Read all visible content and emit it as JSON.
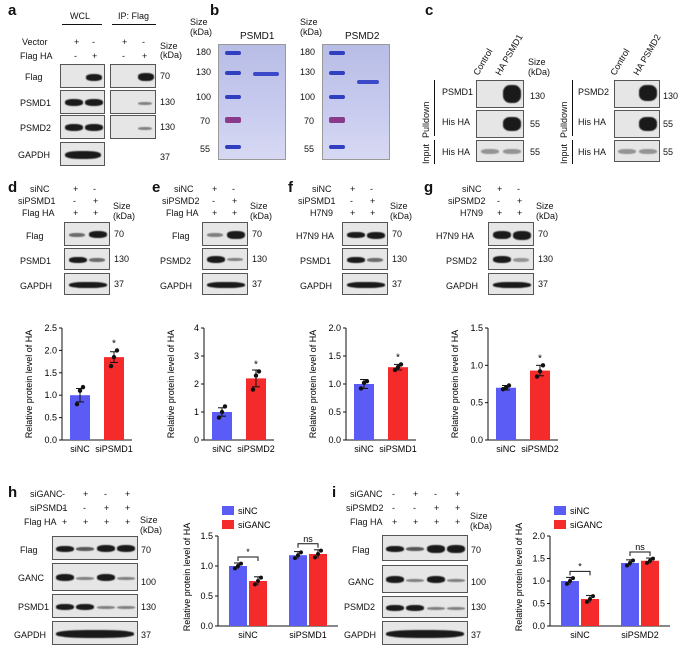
{
  "panels": {
    "a": "a",
    "b": "b",
    "c": "c",
    "d": "d",
    "e": "e",
    "f": "f",
    "g": "g",
    "h": "h",
    "i": "i"
  },
  "panel_a": {
    "wcl": "WCL",
    "ip": "IP: Flag",
    "rows": [
      "Vector",
      "Flag HA"
    ],
    "signs_vector": [
      "+",
      "-",
      "+",
      "-"
    ],
    "signs_flag": [
      "-",
      "+",
      "-",
      "+"
    ],
    "blots": [
      "Flag",
      "PSMD1",
      "PSMD2",
      "GAPDH"
    ],
    "size_header": "Size (kDa)",
    "sizes": [
      "70",
      "130",
      "130",
      "37"
    ]
  },
  "panel_b": {
    "size_header": "Size (kDa)",
    "gel1_title": "PSMD1",
    "gel2_title": "PSMD2",
    "markers": [
      "180",
      "130",
      "100",
      "70",
      "55"
    ]
  },
  "panel_c": {
    "cols1": [
      "Control",
      "HA PSMD1"
    ],
    "cols2": [
      "Control",
      "HA PSMD2"
    ],
    "size_header": "Size (kDa)",
    "pulldown": "Pulldown",
    "input": "Input",
    "rows1": [
      "PSMD1",
      "His HA",
      "His HA"
    ],
    "rows2": [
      "PSMD2",
      "His HA",
      "His HA"
    ],
    "sizes": [
      "130",
      "55",
      "55"
    ]
  },
  "panel_d": {
    "row1": "siNC",
    "row2": "siPSMD1",
    "row3": "Flag HA",
    "blots": [
      "Flag",
      "PSMD1",
      "GAPDH"
    ],
    "sizes": [
      "70",
      "130",
      "37"
    ],
    "signs1": [
      "+",
      "-"
    ],
    "signs2": [
      "-",
      "+"
    ],
    "signs3": [
      "+",
      "+"
    ]
  },
  "panel_e": {
    "row1": "siNC",
    "row2": "siPSMD2",
    "row3": "Flag HA",
    "blots": [
      "Flag",
      "PSMD2",
      "GAPDH"
    ],
    "sizes": [
      "70",
      "130",
      "37"
    ],
    "signs1": [
      "+",
      "-"
    ],
    "signs2": [
      "-",
      "+"
    ],
    "signs3": [
      "+",
      "+"
    ]
  },
  "panel_f": {
    "row1": "siNC",
    "row2": "siPSMD1",
    "row3": "H7N9",
    "blots": [
      "H7N9 HA",
      "PSMD1",
      "GAPDH"
    ],
    "sizes": [
      "70",
      "130",
      "37"
    ],
    "signs1": [
      "+",
      "-"
    ],
    "signs2": [
      "-",
      "+"
    ],
    "signs3": [
      "+",
      "+"
    ]
  },
  "panel_g": {
    "row1": "siNC",
    "row2": "siPSMD2",
    "row3": "H7N9",
    "blots": [
      "H7N9 HA",
      "PSMD2",
      "GAPDH"
    ],
    "sizes": [
      "70",
      "130",
      "37"
    ],
    "signs1": [
      "+",
      "-"
    ],
    "signs2": [
      "-",
      "+"
    ],
    "signs3": [
      "+",
      "+"
    ]
  },
  "panel_h": {
    "rows": [
      "siGANC",
      "siPSMD1",
      "Flag HA"
    ],
    "signs": [
      [
        "-",
        "+",
        "-",
        "+"
      ],
      [
        "-",
        "-",
        "+",
        "+"
      ],
      [
        "+",
        "+",
        "+",
        "+"
      ]
    ],
    "blots": [
      "Flag",
      "GANC",
      "PSMD1",
      "GAPDH"
    ],
    "sizes": [
      "70",
      "100",
      "130",
      "37"
    ],
    "size_header": "Size (kDa)"
  },
  "panel_i": {
    "rows": [
      "siGANC",
      "siPSMD2",
      "Flag HA"
    ],
    "signs": [
      [
        "-",
        "+",
        "-",
        "+"
      ],
      [
        "-",
        "-",
        "+",
        "+"
      ],
      [
        "+",
        "+",
        "+",
        "+"
      ]
    ],
    "blots": [
      "Flag",
      "GANC",
      "PSMD2",
      "GAPDH"
    ],
    "sizes": [
      "70",
      "100",
      "130",
      "37"
    ],
    "size_header": "Size (kDa)"
  },
  "common": {
    "size": "Size",
    "kda": "(kDa)",
    "ylabel": "Relative protein level of HA",
    "sig": "*",
    "ns": "ns"
  },
  "chart_data": [
    {
      "id": "d",
      "type": "bar",
      "categories": [
        "siNC",
        "siPSMD1"
      ],
      "values": [
        1.0,
        1.85
      ],
      "errors": [
        0.15,
        0.12
      ],
      "points": [
        [
          0.8,
          1.1,
          1.18
        ],
        [
          1.65,
          1.85,
          2.0
        ]
      ],
      "ylim": [
        0,
        2.5
      ],
      "yticks": [
        "0.0",
        "0.5",
        "1.0",
        "1.5",
        "2.0",
        "2.5"
      ],
      "colors": [
        "#5b5bf5",
        "#f52a2a"
      ],
      "ylabel": "Relative protein level of HA"
    },
    {
      "id": "e",
      "type": "bar",
      "categories": [
        "siNC",
        "siPSMD2"
      ],
      "values": [
        1.0,
        2.2
      ],
      "errors": [
        0.15,
        0.3
      ],
      "points": [
        [
          0.8,
          1.0,
          1.2
        ],
        [
          1.8,
          2.3,
          2.45
        ]
      ],
      "ylim": [
        0,
        4
      ],
      "yticks": [
        "0",
        "1",
        "2",
        "3",
        "4"
      ],
      "colors": [
        "#5b5bf5",
        "#f52a2a"
      ],
      "ylabel": "Relative protein level of HA"
    },
    {
      "id": "f",
      "type": "bar",
      "categories": [
        "siNC",
        "siPSMD1"
      ],
      "values": [
        1.0,
        1.3
      ],
      "errors": [
        0.08,
        0.05
      ],
      "points": [
        [
          0.92,
          1.02,
          1.05
        ],
        [
          1.25,
          1.3,
          1.35
        ]
      ],
      "ylim": [
        0,
        2.0
      ],
      "yticks": [
        "0.0",
        "0.5",
        "1.0",
        "1.5",
        "2.0"
      ],
      "colors": [
        "#5b5bf5",
        "#f52a2a"
      ],
      "ylabel": "Relative protein level of HA"
    },
    {
      "id": "g",
      "type": "bar",
      "categories": [
        "siNC",
        "siPSMD2"
      ],
      "values": [
        0.7,
        0.93
      ],
      "errors": [
        0.03,
        0.07
      ],
      "points": [
        [
          0.68,
          0.7,
          0.73
        ],
        [
          0.85,
          0.92,
          1.0
        ]
      ],
      "ylim": [
        0,
        1.5
      ],
      "yticks": [
        "0.0",
        "0.5",
        "1.0",
        "1.5"
      ],
      "colors": [
        "#5b5bf5",
        "#f52a2a"
      ],
      "ylabel": "Relative protein level of HA"
    },
    {
      "id": "h",
      "type": "bar",
      "categories": [
        "siNC",
        "siPSMD1"
      ],
      "series": [
        {
          "name": "siNC",
          "values": [
            1.0,
            1.18
          ],
          "errors": [
            0.05,
            0.06
          ]
        },
        {
          "name": "siGANC",
          "values": [
            0.75,
            1.2
          ],
          "errors": [
            0.07,
            0.07
          ]
        }
      ],
      "ylim": [
        0,
        1.5
      ],
      "yticks": [
        "0.0",
        "0.5",
        "1.0",
        "1.5"
      ],
      "colors": [
        "#5b5bf5",
        "#f52a2a"
      ],
      "sig": [
        "*",
        "ns"
      ],
      "ylabel": "Relative protein level of HA"
    },
    {
      "id": "i",
      "type": "bar",
      "categories": [
        "siNC",
        "siPSMD2"
      ],
      "series": [
        {
          "name": "siNC",
          "values": [
            1.0,
            1.4
          ],
          "errors": [
            0.08,
            0.07
          ]
        },
        {
          "name": "siGANC",
          "values": [
            0.6,
            1.45
          ],
          "errors": [
            0.08,
            0.06
          ]
        }
      ],
      "ylim": [
        0,
        2.0
      ],
      "yticks": [
        "0.0",
        "0.5",
        "1.0",
        "1.5",
        "2.0"
      ],
      "colors": [
        "#5b5bf5",
        "#f52a2a"
      ],
      "sig": [
        "*",
        "ns"
      ],
      "ylabel": "Relative protein level of HA"
    }
  ]
}
